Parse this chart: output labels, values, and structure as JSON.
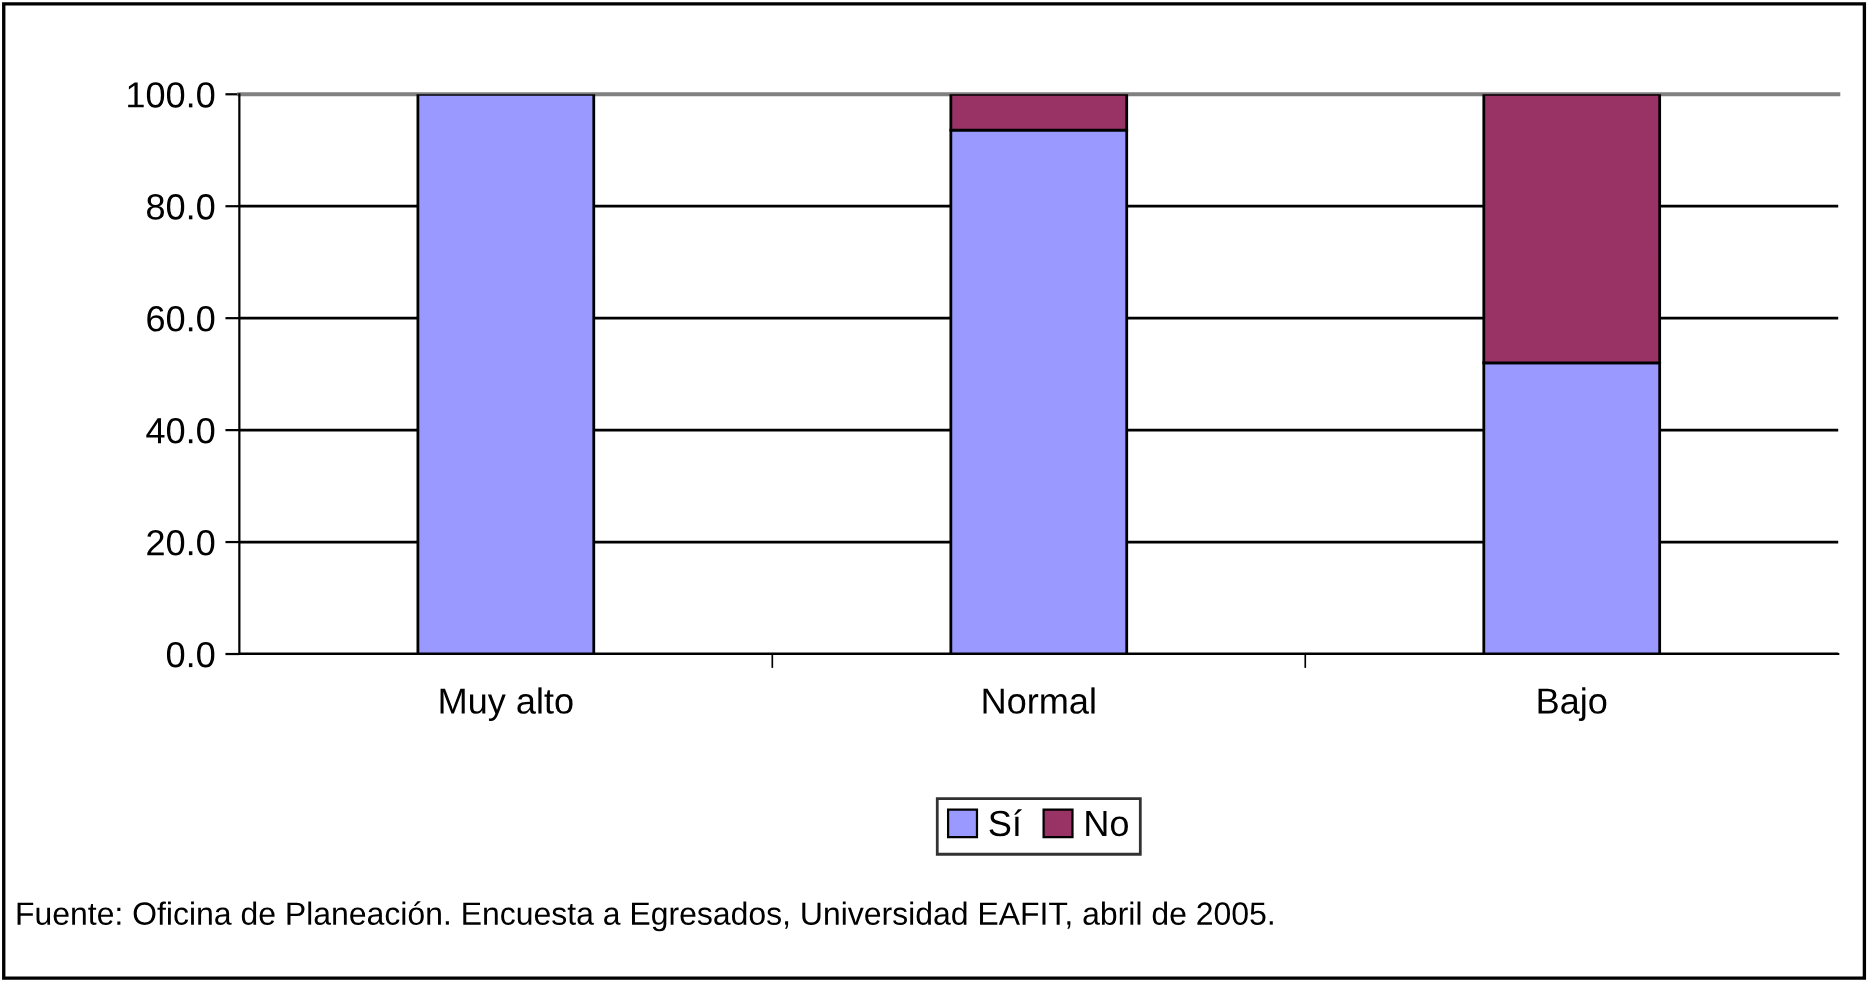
{
  "chart_data": {
    "type": "bar",
    "stacked": true,
    "categories": [
      "Muy alto",
      "Normal",
      "Bajo"
    ],
    "series": [
      {
        "name": "Sí",
        "color": "#9999ff",
        "values": [
          100,
          93.6,
          52
        ]
      },
      {
        "name": "No",
        "color": "#993366",
        "values": [
          null,
          6.4,
          48
        ]
      }
    ],
    "ylim": [
      0,
      100
    ],
    "yticks": [
      {
        "value": 0,
        "label": "0.0"
      },
      {
        "value": 20,
        "label": "20.0"
      },
      {
        "value": 40,
        "label": "40.0"
      },
      {
        "value": 60,
        "label": "60.0"
      },
      {
        "value": 80,
        "label": "80.0"
      },
      {
        "value": 100,
        "label": "100.0"
      }
    ],
    "grid": "y",
    "legend": "bottom",
    "annotations": [
      "Fuente: Oficina de Planeación. Encuesta a Egresados, Universidad EAFIT, abril de 2005."
    ]
  }
}
